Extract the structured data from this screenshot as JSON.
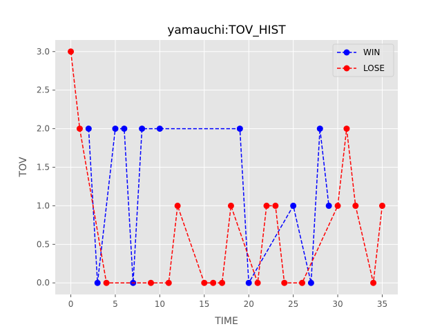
{
  "chart_data": {
    "type": "line",
    "title": "yamauchi:TOV_HIST",
    "xlabel": "TIME",
    "ylabel": "TOV",
    "xlim": [
      -1.75,
      36.75
    ],
    "ylim": [
      -0.15,
      3.15
    ],
    "xticks": [
      0,
      5,
      10,
      15,
      20,
      25,
      30,
      35
    ],
    "yticks": [
      0.0,
      0.5,
      1.0,
      1.5,
      2.0,
      2.5,
      3.0
    ],
    "ytick_labels": [
      "0.0",
      "0.5",
      "1.0",
      "1.5",
      "2.0",
      "2.5",
      "3.0"
    ],
    "grid": true,
    "legend_position": "top-right",
    "series": [
      {
        "name": "WIN",
        "color": "#0000ff",
        "x": [
          2,
          3,
          5,
          6,
          7,
          8,
          10,
          19,
          20,
          25,
          27,
          28,
          29
        ],
        "y": [
          2,
          0,
          2,
          2,
          0,
          2,
          2,
          2,
          0,
          1,
          0,
          2,
          1
        ]
      },
      {
        "name": "LOSE",
        "color": "#ff0000",
        "x": [
          0,
          1,
          4,
          9,
          11,
          12,
          15,
          16,
          17,
          18,
          21,
          22,
          23,
          24,
          26,
          30,
          31,
          32,
          34,
          35
        ],
        "y": [
          3,
          2,
          0,
          0,
          0,
          1,
          0,
          0,
          0,
          1,
          0,
          1,
          1,
          0,
          0,
          1,
          2,
          1,
          0,
          1
        ]
      }
    ]
  }
}
